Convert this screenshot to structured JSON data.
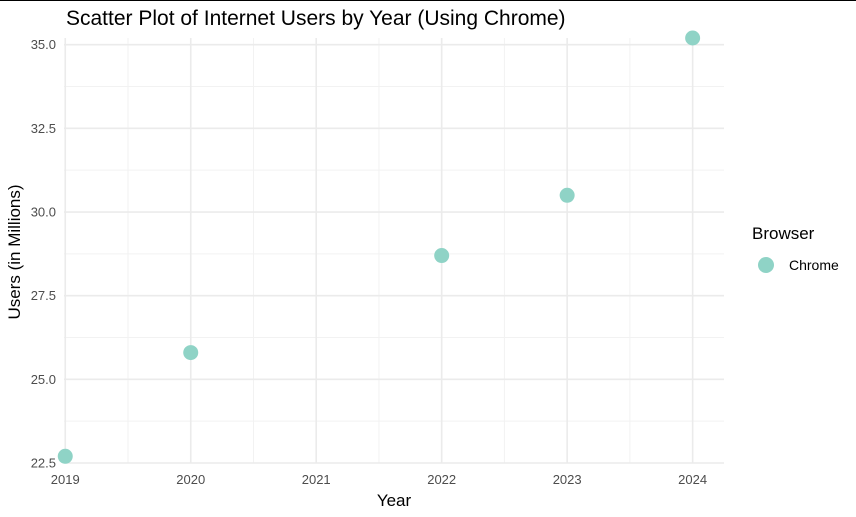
{
  "chart_data": {
    "type": "scatter",
    "title": "Scatter Plot of Internet Users by Year (Using Chrome)",
    "xlabel": "Year",
    "ylabel": "Users (in Millions)",
    "x": [
      2019,
      2020,
      2022,
      2023,
      2024
    ],
    "series": [
      {
        "name": "Chrome",
        "color": "#8fd3c6",
        "values": [
          22.7,
          25.8,
          28.7,
          30.5,
          35.2
        ]
      }
    ],
    "x_ticks": [
      "2019",
      "2020",
      "2021",
      "2022",
      "2023",
      "2024"
    ],
    "y_ticks": [
      "22.5",
      "25.0",
      "27.5",
      "30.0",
      "32.5",
      "35.0"
    ],
    "xlim": [
      2018.99,
      2024.25
    ],
    "ylim": [
      22.5,
      35.2
    ],
    "grid": true,
    "legend": {
      "title": "Browser",
      "position": "right"
    }
  }
}
